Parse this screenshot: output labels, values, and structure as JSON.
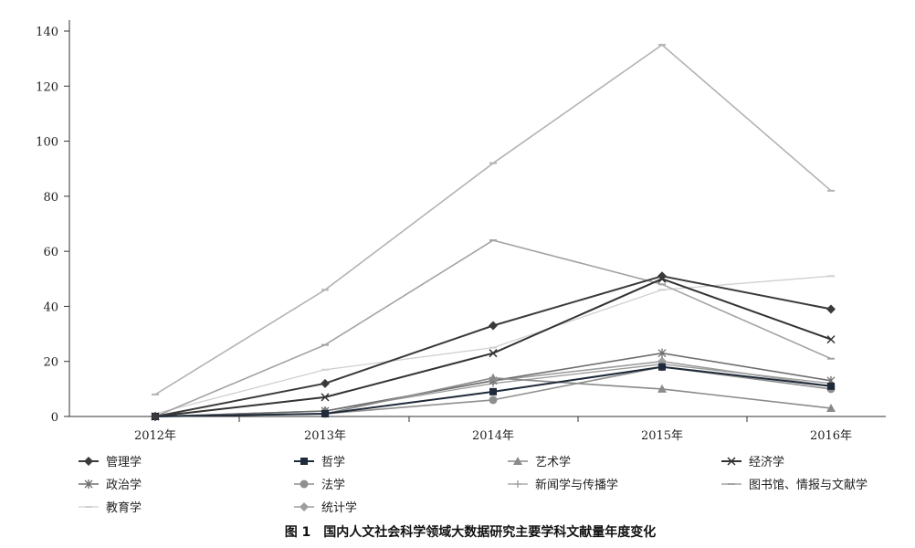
{
  "chart_data": {
    "type": "line",
    "title": "",
    "xlabel": "",
    "ylabel": "",
    "categories": [
      "2012年",
      "2013年",
      "2014年",
      "2015年",
      "2016年"
    ],
    "ylim": [
      0,
      140
    ],
    "yticks": [
      0,
      20,
      40,
      60,
      80,
      100,
      120,
      140
    ],
    "grid": false,
    "legend_position": "bottom",
    "caption": "图 1　国内人文社会科学领域大数据研究主要学科文献量年度变化",
    "series": [
      {
        "name": "管理学",
        "values": [
          0,
          12,
          33,
          51,
          39
        ],
        "color": "#3a3a3a",
        "marker": "diamond",
        "width": 2
      },
      {
        "name": "哲学",
        "values": [
          0,
          1,
          9,
          18,
          11
        ],
        "color": "#1f2a3a",
        "marker": "square",
        "width": 2
      },
      {
        "name": "艺术学",
        "values": [
          0,
          1,
          14,
          10,
          3
        ],
        "color": "#8a8a8a",
        "marker": "triangle",
        "width": 1.6
      },
      {
        "name": "经济学",
        "values": [
          0,
          7,
          23,
          50,
          28
        ],
        "color": "#333333",
        "marker": "x",
        "width": 2
      },
      {
        "name": "政治学",
        "values": [
          0,
          2,
          13,
          23,
          13
        ],
        "color": "#6f6f6f",
        "marker": "star",
        "width": 1.6
      },
      {
        "name": "法学",
        "values": [
          0,
          1,
          6,
          18,
          10
        ],
        "color": "#8f8f8f",
        "marker": "circle",
        "width": 1.6
      },
      {
        "name": "新闻学与传播学",
        "values": [
          0,
          2,
          12,
          19,
          12
        ],
        "color": "#9a9a9a",
        "marker": "plus",
        "width": 1.3
      },
      {
        "name": "图书馆、情报与文献学",
        "values": [
          0,
          26,
          64,
          48,
          21
        ],
        "color": "#a3a3a3",
        "marker": "dash",
        "width": 1.6
      },
      {
        "name": "教育学",
        "values": [
          1,
          17,
          25,
          46,
          51
        ],
        "color": "#d0d0d0",
        "marker": "dash",
        "width": 1.3
      },
      {
        "name": "统计学",
        "values": [
          0,
          2,
          13,
          20,
          11
        ],
        "color": "#9e9e9e",
        "marker": "diamond",
        "width": 1.6
      },
      {
        "name": "",
        "values": [
          8,
          46,
          92,
          135,
          82
        ],
        "color": "#b3b3b3",
        "marker": "dash",
        "width": 1.6
      }
    ]
  }
}
